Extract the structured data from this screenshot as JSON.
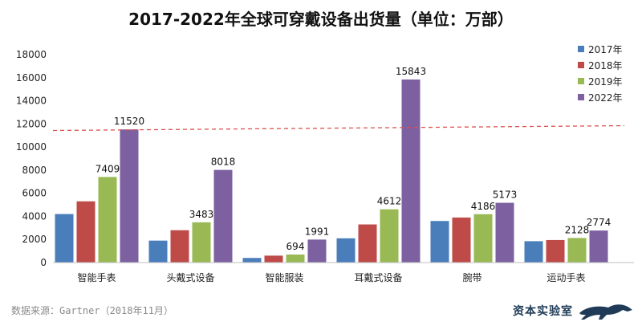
{
  "chart_data": {
    "type": "bar",
    "title": "2017-2022年全球可穿戴设备出货量（单位：万部）",
    "categories": [
      "智能手表",
      "头戴式设备",
      "智能服装",
      "耳戴式设备",
      "腕带",
      "运动手表"
    ],
    "series": [
      {
        "name": "2017年",
        "color": "#4a7ebb",
        "values": [
          4200,
          1900,
          400,
          2100,
          3600,
          1850
        ]
      },
      {
        "name": "2018年",
        "color": "#be4b48",
        "values": [
          5300,
          2800,
          600,
          3300,
          3900,
          1950
        ]
      },
      {
        "name": "2019年",
        "color": "#98b954",
        "values": [
          7409,
          3483,
          694,
          4612,
          4186,
          2128
        ]
      },
      {
        "name": "2022年",
        "color": "#7d60a0",
        "values": [
          11520,
          8018,
          1991,
          15843,
          5173,
          2774
        ]
      }
    ],
    "labels": [
      {
        "series": 2,
        "category": 0,
        "text": "7409"
      },
      {
        "series": 3,
        "category": 0,
        "text": "11520"
      },
      {
        "series": 2,
        "category": 1,
        "text": "3483"
      },
      {
        "series": 3,
        "category": 1,
        "text": "8018"
      },
      {
        "series": 2,
        "category": 2,
        "text": "694"
      },
      {
        "series": 3,
        "category": 2,
        "text": "1991"
      },
      {
        "series": 2,
        "category": 3,
        "text": "4612"
      },
      {
        "series": 3,
        "category": 3,
        "text": "15843"
      },
      {
        "series": 2,
        "category": 4,
        "text": "4186"
      },
      {
        "series": 3,
        "category": 4,
        "text": "5173"
      },
      {
        "series": 2,
        "category": 5,
        "text": "2128"
      },
      {
        "series": 3,
        "category": 5,
        "text": "2774"
      }
    ],
    "yticks": [
      "0",
      "2000",
      "4000",
      "6000",
      "8000",
      "10000",
      "12000",
      "14000",
      "16000",
      "18000"
    ],
    "ylim": [
      0,
      18000
    ],
    "reference_line": {
      "value": 11500,
      "style": "dashed",
      "color": "#d9534f"
    },
    "legend_position": "right",
    "grid": false
  },
  "source": "数据来源：Gartner（2018年11月）",
  "watermark": "资本实验室"
}
